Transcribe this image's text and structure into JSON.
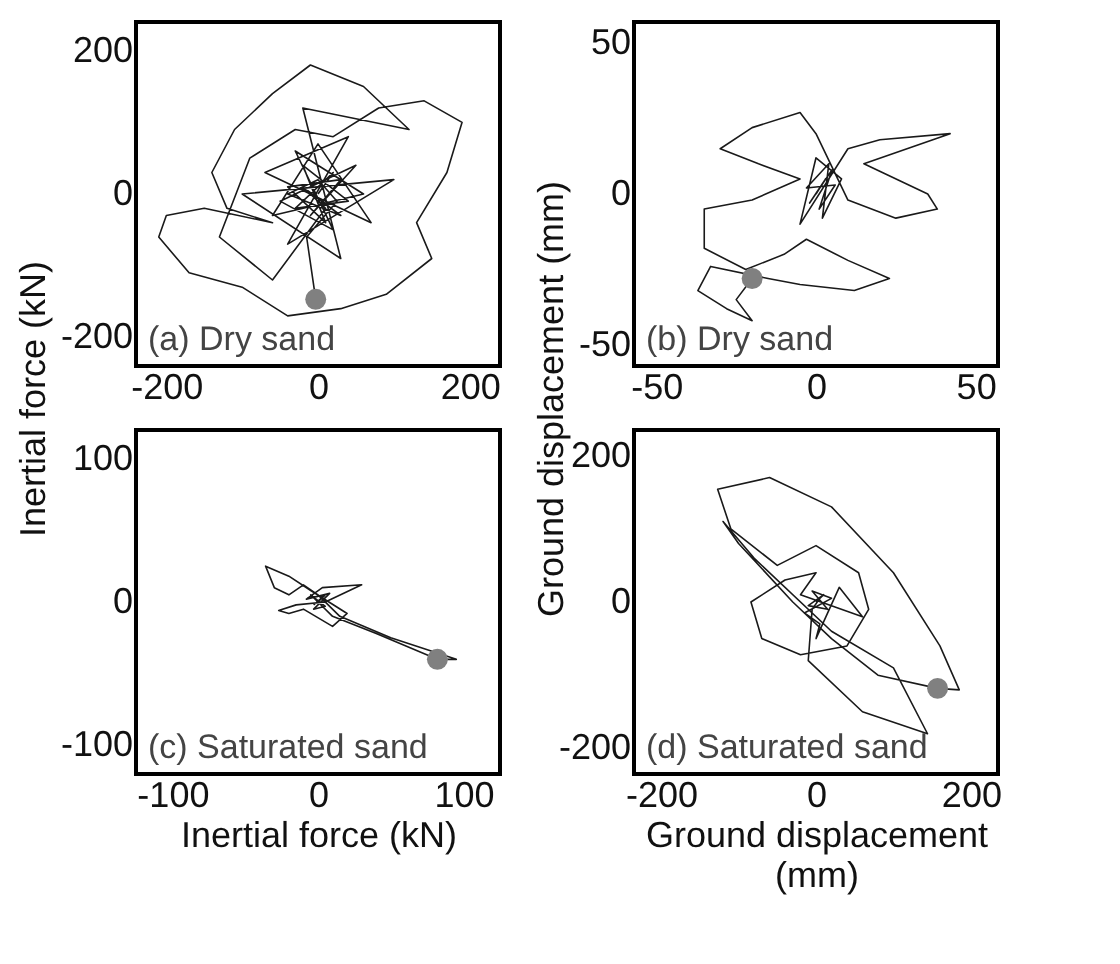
{
  "chart_data": [
    {
      "type": "line",
      "ylabel": "Inertial force (kN)",
      "xlim": [
        -240,
        240
      ],
      "ylim": [
        -240,
        240
      ],
      "xticks": [
        -200,
        0,
        200
      ],
      "yticks": [
        -200,
        0,
        200
      ],
      "annotations": [
        "(a) Dry sand"
      ],
      "series": [
        {
          "type": "line",
          "color": "#1a1a1a",
          "x": [
            0,
            20,
            -30,
            40,
            -20,
            10,
            -40,
            30,
            -10,
            50,
            -50,
            20,
            -30,
            60,
            -60,
            0,
            70,
            -70,
            40,
            -40,
            100,
            -100,
            30,
            -20,
            120,
            60,
            -10,
            -60,
            -110,
            -140,
            -120,
            -60,
            -150,
            -200,
            -210,
            -170,
            -100,
            -40,
            30,
            90,
            150,
            130,
            170,
            190,
            140,
            80,
            20,
            -30,
            -90,
            -130,
            -60,
            10,
            -20,
            30,
            -40,
            0,
            25,
            -15,
            -3
          ],
          "values": [
            0,
            30,
            -20,
            -10,
            40,
            -40,
            10,
            20,
            -30,
            40,
            -10,
            -50,
            60,
            0,
            -30,
            70,
            -40,
            30,
            80,
            -70,
            20,
            0,
            -90,
            120,
            90,
            150,
            180,
            140,
            90,
            30,
            -20,
            -40,
            -20,
            -30,
            -60,
            -110,
            -130,
            -170,
            -160,
            -140,
            -90,
            -40,
            30,
            100,
            130,
            120,
            80,
            90,
            50,
            -60,
            -120,
            -20,
            10,
            -30,
            0,
            20,
            -10,
            -60,
            -147
          ]
        },
        {
          "type": "scatter",
          "marker": "circle",
          "color": "#808080",
          "x": [
            -3
          ],
          "values": [
            -147
          ]
        }
      ]
    },
    {
      "type": "line",
      "ylabel": "Ground displacement (mm)",
      "xlim": [
        -57,
        57
      ],
      "ylim": [
        -57,
        57
      ],
      "xticks": [
        -50,
        0,
        50
      ],
      "yticks": [
        -50,
        0,
        50
      ],
      "annotations": [
        "(b) Dry sand"
      ],
      "series": [
        {
          "type": "line",
          "color": "#1a1a1a",
          "x": [
            0,
            3,
            -2,
            5,
            1,
            6,
            -3,
            4,
            2,
            8,
            0,
            -5,
            10,
            20,
            42,
            15,
            35,
            38,
            25,
            10,
            0,
            -5,
            -20,
            -30,
            -18,
            -5,
            -20,
            -35,
            -35,
            -22,
            -10,
            -3,
            10,
            23,
            12,
            -5,
            -15,
            -33,
            -37,
            -28,
            -20,
            -25,
            -20
          ],
          "values": [
            0,
            5,
            -3,
            8,
            -5,
            3,
            2,
            10,
            -8,
            5,
            12,
            -10,
            15,
            18,
            20,
            10,
            0,
            -5,
            -8,
            -2,
            20,
            27,
            22,
            15,
            10,
            5,
            -2,
            -5,
            -18,
            -25,
            -20,
            -15,
            -22,
            -28,
            -32,
            -30,
            -28,
            -24,
            -32,
            -38,
            -42,
            -35,
            -28
          ]
        },
        {
          "type": "scatter",
          "marker": "circle",
          "color": "#808080",
          "x": [
            -20
          ],
          "values": [
            -28
          ]
        }
      ]
    },
    {
      "type": "line",
      "xlabel": "Inertial force (kN)",
      "xlim": [
        -125,
        125
      ],
      "ylim": [
        -120,
        120
      ],
      "xticks": [
        -100,
        0,
        100
      ],
      "yticks": [
        -100,
        0,
        100
      ],
      "annotations": [
        "(c) Saturated sand"
      ],
      "series": [
        {
          "type": "line",
          "color": "#1a1a1a",
          "x": [
            0,
            -5,
            5,
            -3,
            8,
            -8,
            3,
            30,
            5,
            -15,
            -27,
            -20,
            -10,
            10,
            20,
            -5,
            -20,
            -36,
            -30,
            -20,
            -10,
            0,
            15,
            50,
            95,
            82,
            40,
            10,
            0,
            5,
            -3
          ],
          "values": [
            0,
            5,
            -3,
            -5,
            6,
            2,
            10,
            12,
            0,
            -2,
            -6,
            -8,
            -5,
            -17,
            -8,
            8,
            18,
            25,
            10,
            5,
            12,
            5,
            -10,
            -25,
            -40,
            -40,
            -22,
            -10,
            0,
            5,
            -2
          ]
        },
        {
          "type": "scatter",
          "marker": "circle",
          "color": "#808080",
          "x": [
            82
          ],
          "values": [
            -40
          ]
        }
      ]
    },
    {
      "type": "line",
      "xlabel": "Ground displacement (mm)",
      "xlim": [
        -235,
        235
      ],
      "ylim": [
        -235,
        235
      ],
      "xticks": [
        -200,
        0,
        200
      ],
      "yticks": [
        -200,
        0,
        200
      ],
      "annotations": [
        "(d) Saturated sand"
      ],
      "series": [
        {
          "type": "line",
          "color": "#1a1a1a",
          "x": [
            0,
            10,
            -10,
            15,
            -5,
            20,
            -15,
            5,
            0,
            30,
            60,
            -20,
            0,
            -40,
            -84,
            -70,
            -20,
            40,
            68,
            55,
            0,
            -50,
            -110,
            -127,
            -60,
            20,
            100,
            160,
            185,
            157,
            80,
            20,
            -30,
            -100,
            -120,
            -80,
            20,
            100,
            144,
            60,
            -10,
            -5,
            5
          ],
          "values": [
            0,
            10,
            -5,
            -10,
            15,
            5,
            -15,
            -30,
            -50,
            20,
            -20,
            10,
            40,
            30,
            0,
            -50,
            -72,
            -60,
            -10,
            40,
            77,
            50,
            100,
            154,
            170,
            130,
            40,
            -60,
            -120,
            -118,
            -100,
            -50,
            0,
            80,
            110,
            60,
            -40,
            -90,
            -180,
            -150,
            -80,
            -10,
            5
          ]
        },
        {
          "type": "scatter",
          "marker": "circle",
          "color": "#808080",
          "x": [
            157
          ],
          "values": [
            -118
          ]
        }
      ]
    }
  ]
}
